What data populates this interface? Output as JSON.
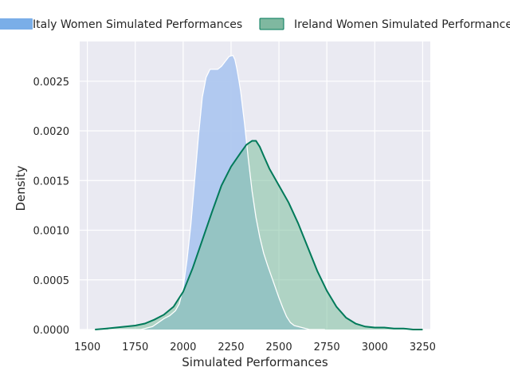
{
  "chart_data": {
    "type": "area",
    "xlabel": "Simulated Performances",
    "ylabel": "Density",
    "xlim": [
      1460,
      3290
    ],
    "ylim": [
      0,
      0.0029
    ],
    "xticks": [
      1500,
      1750,
      2000,
      2250,
      2500,
      2750,
      3000,
      3250
    ],
    "xtick_labels": [
      "1500",
      "1750",
      "2000",
      "2250",
      "2500",
      "2750",
      "3000",
      "3250"
    ],
    "yticks": [
      0,
      0.0005,
      0.001,
      0.0015,
      0.002,
      0.0025
    ],
    "ytick_labels": [
      "0.0000",
      "0.0005",
      "0.0010",
      "0.0015",
      "0.0020",
      "0.0025"
    ],
    "grid": true,
    "legend_position": "top",
    "series": [
      {
        "name": "Italy Women Simulated Performances",
        "fill_color": "#aec7ef",
        "line_color": "#ffffff",
        "legend_color": "#7aaee8",
        "x": [
          1610,
          1700,
          1780,
          1840,
          1870,
          1900,
          1930,
          1960,
          1980,
          2000,
          2020,
          2040,
          2060,
          2080,
          2100,
          2120,
          2140,
          2160,
          2180,
          2200,
          2220,
          2240,
          2260,
          2270,
          2280,
          2290,
          2300,
          2320,
          2340,
          2360,
          2380,
          2400,
          2420,
          2440,
          2460,
          2480,
          2500,
          2520,
          2540,
          2560,
          2580,
          2600,
          2620,
          2640,
          2660,
          2680,
          2700,
          2720,
          2740
        ],
        "y": [
          0.0,
          0.0,
          0.0,
          3e-05,
          7e-05,
          0.00011,
          0.00014,
          0.00019,
          0.00026,
          0.00042,
          0.0007,
          0.00105,
          0.0015,
          0.00195,
          0.00234,
          0.00254,
          0.00262,
          0.00262,
          0.00262,
          0.00265,
          0.0027,
          0.00275,
          0.00276,
          0.00272,
          0.00263,
          0.00252,
          0.0024,
          0.00208,
          0.00172,
          0.00139,
          0.00113,
          0.00093,
          0.00077,
          0.00065,
          0.00054,
          0.00043,
          0.00032,
          0.00022,
          0.00013,
          7e-05,
          4e-05,
          3e-05,
          2e-05,
          1e-05,
          0.0,
          0.0,
          0.0,
          0.0,
          0.0
        ]
      },
      {
        "name": "Ireland Women Simulated Performances",
        "fill_color": "#7ebf9f",
        "line_color": "#007a5a",
        "legend_color": "#7fb8a0",
        "x": [
          1540,
          1600,
          1650,
          1700,
          1750,
          1800,
          1850,
          1900,
          1950,
          2000,
          2050,
          2100,
          2150,
          2200,
          2250,
          2300,
          2330,
          2360,
          2380,
          2400,
          2420,
          2450,
          2500,
          2550,
          2600,
          2650,
          2700,
          2750,
          2800,
          2850,
          2900,
          2950,
          3000,
          3050,
          3100,
          3150,
          3200,
          3250
        ],
        "y": [
          0.0,
          1e-05,
          2e-05,
          3e-05,
          4e-05,
          6e-05,
          0.0001,
          0.00015,
          0.00023,
          0.00038,
          0.00062,
          0.0009,
          0.00118,
          0.00145,
          0.00164,
          0.00178,
          0.00186,
          0.0019,
          0.0019,
          0.00184,
          0.00175,
          0.00162,
          0.00145,
          0.00128,
          0.00107,
          0.00083,
          0.00059,
          0.00039,
          0.00023,
          0.00012,
          6e-05,
          3e-05,
          2e-05,
          2e-05,
          1e-05,
          1e-05,
          0.0,
          0.0
        ]
      }
    ]
  }
}
